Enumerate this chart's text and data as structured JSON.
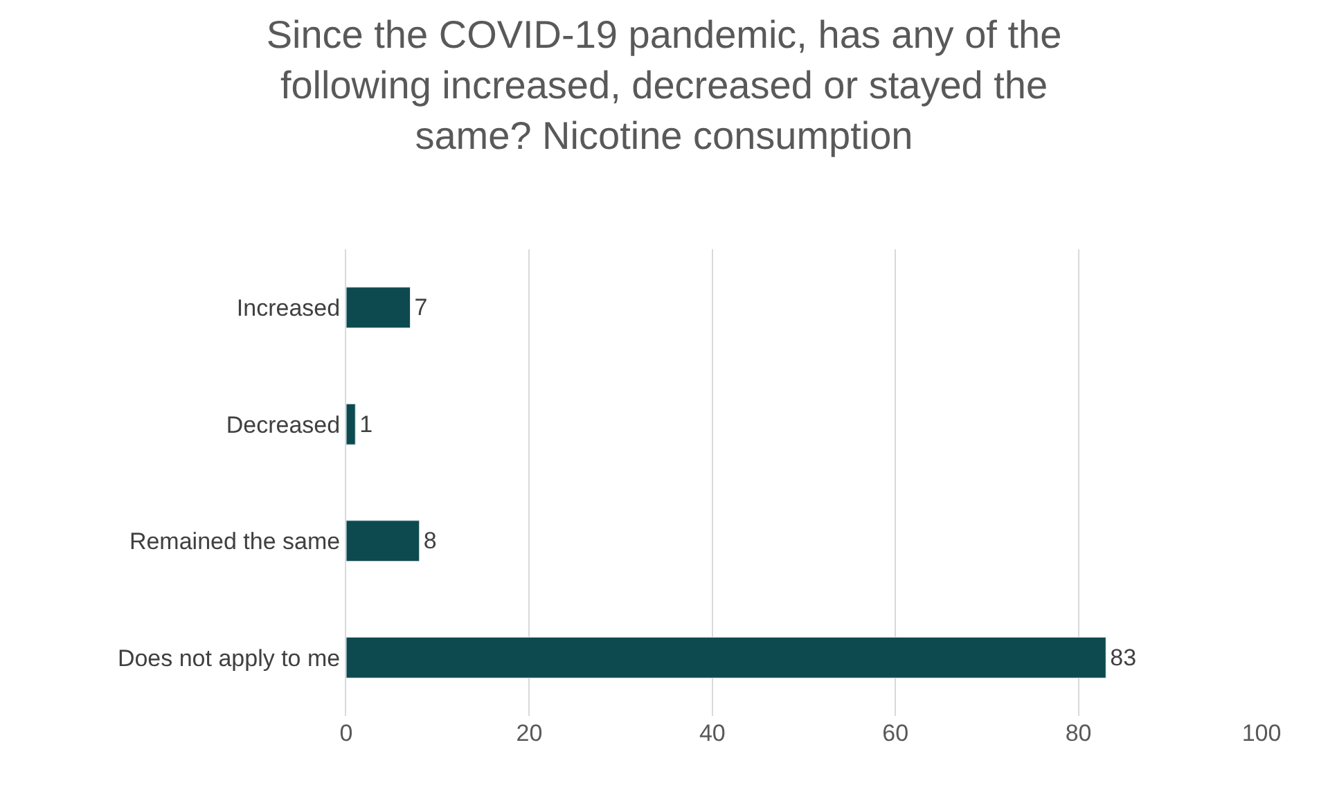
{
  "chart_data": {
    "type": "bar",
    "orientation": "horizontal",
    "title": "Since the COVID-19 pandemic, has any of the following increased, decreased or stayed the same? Nicotine consumption",
    "categories": [
      "Increased",
      "Decreased",
      "Remained the same",
      "Does not apply to me"
    ],
    "values": [
      7,
      1,
      8,
      83
    ],
    "color": "#0d4a4f",
    "data_labels": true,
    "xlim": [
      0,
      100
    ],
    "xticks": [
      0,
      20,
      40,
      60,
      80,
      100
    ],
    "grid": "x"
  }
}
